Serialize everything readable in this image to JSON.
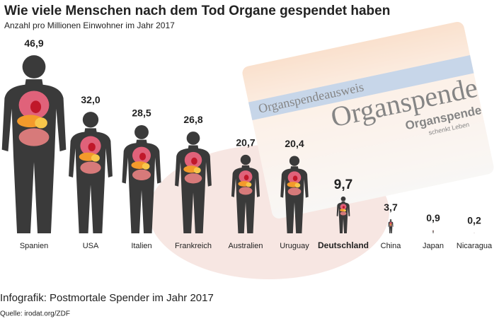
{
  "chart_data": {
    "type": "pictogram",
    "title": "Wie viele Menschen nach dem Tod Organe gespendet haben",
    "subtitle": "Anzahl pro Millionen Einwohner im Jahr 2017",
    "categories": [
      "Spanien",
      "USA",
      "Italien",
      "Frankreich",
      "Australien",
      "Uruguay",
      "Deutschland",
      "China",
      "Japan",
      "Nicaragua"
    ],
    "values": [
      46.9,
      32.0,
      28.5,
      26.8,
      20.7,
      20.4,
      9.7,
      3.7,
      0.9,
      0.2
    ],
    "value_labels": [
      "46,9",
      "32,0",
      "28,5",
      "26,8",
      "20,7",
      "20,4",
      "9,7",
      "3,7",
      "0,9",
      "0,2"
    ],
    "highlight": "Deutschland",
    "color": "#3a3a3a",
    "caption": "Infografik: Postmortale Spender im Jahr 2017",
    "source": "Quelle: irodat.org/ZDF",
    "background_card": {
      "title": "Organspendeausweis",
      "watermark": "Organspende",
      "logo": "Organspende",
      "slogan": "schenkt Leben"
    }
  }
}
